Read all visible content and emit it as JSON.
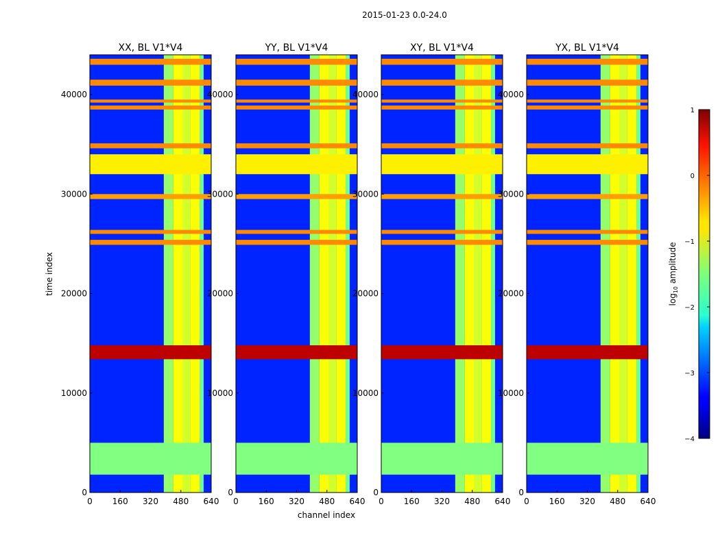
{
  "figure": {
    "suptitle": "2015-01-23 0.0-24.0",
    "xlabel": "channel index",
    "ylabel": "time index"
  },
  "colorbar": {
    "label_prefix": "log",
    "label_sub": "10",
    "label_suffix": " amplitude",
    "ticks": [
      1,
      0,
      -1,
      -2,
      -3,
      -4
    ],
    "tick_labels": [
      "1",
      "0",
      "−1",
      "−2",
      "−3",
      "−4"
    ],
    "vmin": -4,
    "vmax": 1,
    "colormap": "jet"
  },
  "chart_data": [
    {
      "type": "heatmap",
      "title": "XX, BL V1*V4",
      "xlabel": "channel index",
      "ylabel": "time index",
      "xlim": [
        0,
        640
      ],
      "ylim": [
        0,
        44000
      ],
      "xticks": [
        0,
        160,
        320,
        480,
        640
      ],
      "yticks": [
        0,
        10000,
        20000,
        30000,
        40000
      ]
    },
    {
      "type": "heatmap",
      "title": "YY, BL V1*V4",
      "xlabel": "channel index",
      "ylabel": "",
      "xlim": [
        0,
        640
      ],
      "ylim": [
        0,
        44000
      ],
      "xticks": [
        0,
        160,
        320,
        480,
        640
      ],
      "yticks": [
        0,
        10000,
        20000,
        30000,
        40000
      ]
    },
    {
      "type": "heatmap",
      "title": "XY, BL V1*V4",
      "xlabel": "channel index",
      "ylabel": "",
      "xlim": [
        0,
        640
      ],
      "ylim": [
        0,
        44000
      ],
      "xticks": [
        0,
        160,
        320,
        480,
        640
      ],
      "yticks": [
        0,
        10000,
        20000,
        30000,
        40000
      ]
    },
    {
      "type": "heatmap",
      "title": "YX, BL V1*V4",
      "xlabel": "channel index",
      "ylabel": "",
      "xlim": [
        0,
        640
      ],
      "ylim": [
        0,
        44000
      ],
      "xticks": [
        0,
        160,
        320,
        480,
        640
      ],
      "yticks": [
        0,
        10000,
        20000,
        30000,
        40000
      ]
    }
  ],
  "heatmap_features": {
    "background_value": -3.2,
    "time_bands": [
      {
        "from": 1800,
        "to": 5000,
        "value": -1.5
      },
      {
        "from": 13400,
        "to": 14800,
        "value": 0.7
      },
      {
        "from": 24900,
        "to": 25400,
        "value": -0.3
      },
      {
        "from": 26000,
        "to": 26400,
        "value": -0.3
      },
      {
        "from": 29500,
        "to": 30000,
        "value": -0.4
      },
      {
        "from": 32000,
        "to": 34000,
        "value": -0.8
      },
      {
        "from": 34600,
        "to": 35100,
        "value": -0.3
      },
      {
        "from": 38500,
        "to": 38900,
        "value": -0.3
      },
      {
        "from": 39200,
        "to": 39500,
        "value": -0.3
      },
      {
        "from": 40900,
        "to": 41500,
        "value": -0.3
      },
      {
        "from": 43000,
        "to": 43600,
        "value": -0.3
      }
    ],
    "channel_bands": [
      {
        "from": 390,
        "to": 440,
        "value": -1.4
      },
      {
        "from": 440,
        "to": 490,
        "value": -0.9
      },
      {
        "from": 490,
        "to": 530,
        "value": -1.1
      },
      {
        "from": 530,
        "to": 580,
        "value": -0.9
      },
      {
        "from": 580,
        "to": 600,
        "value": -1.6
      }
    ]
  }
}
